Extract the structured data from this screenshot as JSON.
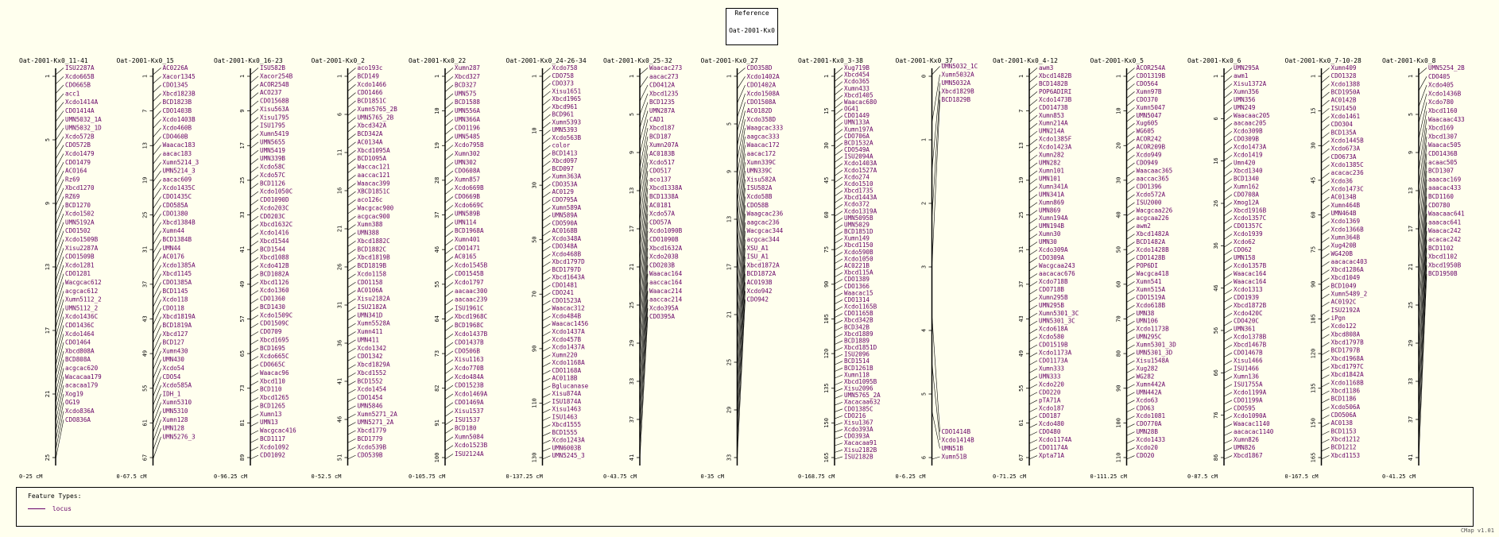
{
  "reference": {
    "heading": "Reference",
    "map": "Oat-2001-Kx0"
  },
  "legend": {
    "title": "Feature Types:",
    "item": "locus",
    "color": "#660066"
  },
  "version": "CMap v1.01",
  "maps": [
    {
      "title": "Oat-2001-Kx0_11-41",
      "range": "0-25 cM",
      "ticks": [
        "1",
        "5",
        "9",
        "13",
        "17",
        "21",
        "25"
      ],
      "labels": [
        "ISU2287A",
        "Xcdo665B",
        "CDO665B",
        "acc1",
        "Xcdo1414A",
        "CDO1414A",
        "UMN5032_1A",
        "UMN5032_1D",
        "Xcdo572B",
        "CDO572B",
        "Xcdo1479",
        "CDO1479",
        "ACO164",
        "Rz69",
        "Xbcd1270",
        "RZ69",
        "BCD1270",
        "Xcdo1502",
        "UMN5192A",
        "CDO1502",
        "Xcdo1509B",
        "Xisu2287A",
        "CDO1509B",
        "Xcdo1281",
        "CDO1281",
        "Wacgcac612",
        "acgcac612",
        "Xumn5112_2",
        "UMN5112_2",
        "Xcdo1436C",
        "CDO1436C",
        "Xcdo1464",
        "CDO1464",
        "Xbcd808A",
        "BCD808A",
        "acgcac620",
        "Wacacaa179",
        "acacaa179",
        "Xog19",
        "OG19",
        "Xcdo836A",
        "CDO836A"
      ]
    },
    {
      "title": "Oat-2001-Kx0_15",
      "range": "0-67.5 cM",
      "ticks": [
        "1",
        "7",
        "13",
        "19",
        "25",
        "31",
        "37",
        "43",
        "49",
        "55",
        "61",
        "67"
      ],
      "labels": [
        "AC0226A",
        "Xacor1345",
        "CDO1345",
        "Xbcd1823B",
        "BCD1823B",
        "CDO1403B",
        "Xcdo1403B",
        "Xcdo460B",
        "CDO460B",
        "Waacac183",
        "aacac183",
        "Xumn5214_3",
        "UMN5214_3",
        "aacac609",
        "Xcdo1435C",
        "CDO1435C",
        "CDO585A",
        "CDO1380",
        "Xbcd1384B",
        "Xumn44",
        "BCD1384B",
        "UMN44",
        "AC0176",
        "Xcdo1385A",
        "Xbcd1145",
        "CDO1385A",
        "BCD1145",
        "Xcdo118",
        "CDO118",
        "Xbcd1819A",
        "BCD1819A",
        "Xbcd127",
        "BCD127",
        "Xumn430",
        "UMN430",
        "Xcdo54",
        "CDO54",
        "Xcdo585A",
        "IDH_1",
        "Xumn5310",
        "UMN5310",
        "Xumn128",
        "UMN128",
        "UMN5276_3"
      ]
    },
    {
      "title": "Oat-2001-Kx0_16-23",
      "range": "0-96.25 cM",
      "ticks": [
        "1",
        "9",
        "17",
        "25",
        "33",
        "41",
        "49",
        "57",
        "65",
        "73",
        "81",
        "89"
      ],
      "labels": [
        "ISU582B",
        "Xacor254B",
        "ACOR254B",
        "ACO237",
        "CDO1568B",
        "Xisu563A",
        "Xisu1795",
        "ISU1795",
        "Xumn5419",
        "UMN5655",
        "UMN5419",
        "UMN339B",
        "Xcdo58C",
        "Xcdo57C",
        "BCD1126",
        "Xcdo1050C",
        "CDO1090D",
        "Xcdo203C",
        "CDO203C",
        "Xbcd1632C",
        "Xcdo1416",
        "Xbcd1544",
        "BCD1544",
        "Xbcd1088",
        "Xcdo412B",
        "BCD1082A",
        "Xbcd1126",
        "Xcdo1360",
        "CDO1360",
        "BCD1430",
        "Xcdo1509C",
        "CDO1509C",
        "CDO709",
        "Xbcd1695",
        "BCD1695",
        "Xcdo665C",
        "CDO665C",
        "Waacac96",
        "Xbcd110",
        "BCD110",
        "Xbcd1265",
        "BCD1265",
        "Xumn13",
        "UMN13",
        "Wacgcac416",
        "BCD1117",
        "Xcdo1092",
        "CDO1092"
      ]
    },
    {
      "title": "Oat-2001-Kx0_2",
      "range": "0-52.5 cM",
      "ticks": [
        "1",
        "6",
        "11",
        "16",
        "21",
        "26",
        "31",
        "36",
        "41",
        "46",
        "51"
      ],
      "labels": [
        "aco193c",
        "BCD149",
        "Xcdo1466",
        "CDO1466",
        "BCD1851C",
        "Xumn5765_2B",
        "UMN5765_2B",
        "Xbcd342A",
        "BCD342A",
        "AC0134A",
        "Xbcd1095A",
        "BCD1095A",
        "Waccac121",
        "aaccac121",
        "Waacac399",
        "XBCD1851C",
        "aco126c",
        "Wacgcac900",
        "acgcac900",
        "Xumn388",
        "UMN388",
        "Xbcd1882C",
        "BCD1882C",
        "Xbcd1819B",
        "BCD1819B",
        "Xcdo1158",
        "CDO1158",
        "AC0106A",
        "Xisu2182A",
        "ISU2182A",
        "UMN341D",
        "Xumn5528A",
        "Xumn411",
        "UMN411",
        "Xcdo1342",
        "CDO1342",
        "Xbcd1829A",
        "Xbcd1552",
        "BCD1552",
        "Xcdo1454",
        "CDO1454",
        "UMN5846",
        "Xumn5271_2A",
        "UMN5271_2A",
        "Xbcd1779",
        "BCD1779",
        "Xcdo539B",
        "CDO539B"
      ]
    },
    {
      "title": "Oat-2001-Kx0_22",
      "range": "0-105.75 cM",
      "ticks": [
        "1",
        "10",
        "19",
        "28",
        "37",
        "46",
        "55",
        "64",
        "73",
        "82",
        "91",
        "100"
      ],
      "labels": [
        "Xumn287",
        "Xbcd327",
        "BCD327",
        "UMN575",
        "BCD1588",
        "UMN556A",
        "UMN366A",
        "CDO1196",
        "UMN5485",
        "Xcdo795B",
        "Xumn302",
        "UMN302",
        "CDO608A",
        "Xumn857",
        "Xcdo669B",
        "CDO669B",
        "Xcdo669C",
        "UMN589B",
        "UMN114",
        "BCD1968A",
        "Xumn401",
        "CDO1471",
        "AC0165",
        "Xcdo1545B",
        "CDO1545B",
        "Xcdo1797",
        "aacaac300",
        "aacaac239",
        "ISU1961C",
        "Xbcd1968C",
        "BCD1968C",
        "Xcdo1437B",
        "CDO1437B",
        "CDO506B",
        "Xisu1163",
        "Xcdo770B",
        "Xcdo484A",
        "CDO1523B",
        "Xcdo1469A",
        "CDO1469A",
        "Xisu1537",
        "ISU1537",
        "BCD180",
        "Xumn5084",
        "Xcdo1523B",
        "ISU2124A"
      ]
    },
    {
      "title": "Oat-2001-Kx0_24-26-34",
      "range": "0-137.25 cM",
      "ticks": [
        "1",
        "10",
        "30",
        "50",
        "70",
        "90",
        "110",
        "130"
      ],
      "labels": [
        "Xcdo758",
        "CDO758",
        "CDO373",
        "Xisu1651",
        "Xbcd1965",
        "Xbcd961",
        "BCD961",
        "Xumn5393",
        "UMN5393",
        "Xcdo563B",
        "color",
        "BCD1413",
        "Xbcd097",
        "BCD097",
        "Xumn363A",
        "CDO353A",
        "AC0129",
        "CDO795A",
        "Xumn589A",
        "UMN589A",
        "CDO590A",
        "AC0168B",
        "Xcdo348A",
        "CDO348A",
        "Xcdo468B",
        "Xbcd1797D",
        "BCD1797D",
        "Xbcd1643A",
        "CDO1481",
        "CDO241",
        "CDO1523A",
        "Waacac312",
        "Xcdo484B",
        "Waacac1456",
        "Xcdo1437A",
        "Xcdo457B",
        "Xcdo1437A",
        "Xumn220",
        "Xcdo1168A",
        "CDO1168A",
        "AC0118B",
        "Bglucanase",
        "Xisu874A",
        "ISU1874A",
        "Xisu1463",
        "ISU1463",
        "Xbcd1555",
        "BCD1555",
        "Xcdo1243A",
        "UMN6003B",
        "UMN5245_3"
      ]
    },
    {
      "title": "Oat-2001-Kx0_25-32",
      "range": "0-43.75 cM",
      "ticks": [
        "1",
        "5",
        "9",
        "13",
        "17",
        "21",
        "25",
        "29",
        "33",
        "37",
        "41"
      ],
      "labels": [
        "Waacac273",
        "aacac273",
        "CDO412A",
        "Xbcd1235",
        "BCD1235",
        "UMN287A",
        "CAD1",
        "Xbcd187",
        "BCD187",
        "Xumn207A",
        "AC0183B",
        "Xcdo517",
        "CDO517",
        "aco137",
        "Xbcd1338A",
        "BCD1338A",
        "AC0181",
        "Xcdo57A",
        "CDO57A",
        "Xcdo1090B",
        "CDO1090B",
        "Xbcd1632A",
        "Xcdo203B",
        "CDO203B",
        "Waacac164",
        "aaccac164",
        "Waacac214",
        "aaccac214",
        "Xcdo395A",
        "CDO395A"
      ]
    },
    {
      "title": "Oat-2001-Kx0_27",
      "range": "0-35 cM",
      "ticks": [
        "1",
        "5",
        "9",
        "13",
        "17",
        "21",
        "25",
        "29",
        "33"
      ],
      "labels": [
        "CDO358D",
        "Xcdo1402A",
        "CDO1402A",
        "Xcdo1508A",
        "CDO1508A",
        "AC0182D",
        "Xcdo358D",
        "Waagcac333",
        "aagcac333",
        "Waacac172",
        "aacac172",
        "Xumn339C",
        "UMN339C",
        "Xisu582A",
        "ISU582A",
        "Xcdo58B",
        "CDO58B",
        "Waagcac236",
        "aagcac236",
        "Wacgcac344",
        "acgcac344",
        "XSU_A1",
        "ISU_A1",
        "Xbcd1872A",
        "BCD1872A",
        "AC0193B",
        "Xcdo942",
        "CDO942"
      ]
    },
    {
      "title": "Oat-2001-Kx0_3-38",
      "range": "0-168.75 cM",
      "ticks": [
        "1",
        "15",
        "30",
        "45",
        "60",
        "75",
        "90",
        "105",
        "120",
        "135",
        "150",
        "165"
      ],
      "labels": [
        "Xug719B",
        "Xbcd454",
        "Xcdo365",
        "Xumn433",
        "Xbcd1405",
        "Waacac680",
        "OG41",
        "CDO1449",
        "UMN133A",
        "Xumn197A",
        "CDO706A",
        "BCD1532A",
        "CDO549A",
        "ISU2094A",
        "Xcdo1403A",
        "Xcdo1527A",
        "Xcdo274",
        "Xcdo1510",
        "Xbcd1735",
        "Xbcd1443A",
        "Xcdo372",
        "Xcdo1319A",
        "UMN5095B",
        "UMN5029",
        "BCD1851D",
        "Xumn149",
        "Xbcd1150",
        "Xcdo590B",
        "Xcdo1050",
        "AC0221B",
        "Xbcd115A",
        "CDO1389",
        "CDO1366",
        "Waacac15",
        "CDO1314",
        "Xcdo1165B",
        "CDO1165B",
        "Xbcd342B",
        "BCD342B",
        "Xbcd1889",
        "BCD1889",
        "Xbcd1851D",
        "ISU2096",
        "BCD1514",
        "BCD1261B",
        "Xumn118",
        "Xbcd1095B",
        "Xisu2096",
        "UMN5765_2A",
        "Xacacaa632",
        "CDO1385C",
        "CDO216",
        "Xisu1367",
        "Xcdo393A",
        "CDO393A",
        "Xacacaa91",
        "Xisu2182B",
        "ISU2182B"
      ]
    },
    {
      "title": "Oat-2001-Kx0_37",
      "range": "0-6.25 cM",
      "ticks": [
        "0",
        "1",
        "2",
        "3",
        "4",
        "5",
        "6"
      ],
      "labels": [
        "UMN5032_1C",
        "Xumn5032A",
        "UMN5032A",
        "Xbcd1829B",
        "BCD1829B",
        "CDO1414B",
        "Xcdo1414B",
        "UMN51B",
        "Xumn51B"
      ]
    },
    {
      "title": "Oat-2001-Kx0_4-12",
      "range": "0-71.25 cM",
      "ticks": [
        "1",
        "7",
        "13",
        "19",
        "25",
        "31",
        "37",
        "43",
        "49",
        "55",
        "61",
        "67"
      ],
      "labels": [
        "awm3",
        "Xbcd1482B",
        "BCD1482B",
        "POP6ADIRI",
        "Xcdo1473B",
        "CDO1473B",
        "Xumn853",
        "Xumn214A",
        "UMN214A",
        "Xcdo1385F",
        "Xcdo1423A",
        "Xumn282",
        "UMN282",
        "Xumn101",
        "UMN101",
        "Xumn341A",
        "UMN341A",
        "Xumn869",
        "UMN869",
        "Xumn194A",
        "UMN194B",
        "Xumn30",
        "UMN30",
        "Xcdo309A",
        "CDO309A",
        "Wacgcaa243",
        "aacacac676",
        "Xcdo718B",
        "CDO718B",
        "Xumn295B",
        "UMN295B",
        "Xumn5301_3C",
        "UMN5301_3C",
        "Xcdo618A",
        "Xcdo580",
        "CDO1519B",
        "Xcdo1173A",
        "CDO1173A",
        "Xumn333",
        "UMN333",
        "Xcdo220",
        "CDO220",
        "pTA71A",
        "Xcdo187",
        "CDO187",
        "Xcdo480",
        "CDO480",
        "Xcdo1174A",
        "CDO1174A",
        "Xpta71A"
      ]
    },
    {
      "title": "Oat-2001-Kx0_5",
      "range": "0-111.25 cM",
      "ticks": [
        "1",
        "10",
        "20",
        "30",
        "40",
        "50",
        "60",
        "70",
        "80",
        "90",
        "100",
        "110"
      ],
      "labels": [
        "ACOR254A",
        "CDO1319B",
        "CDO564",
        "Xumn97B",
        "CDO370",
        "Xumn5047",
        "UMN5047",
        "Xug605",
        "WG605",
        "ACOR242",
        "ACOR209B",
        "Xcdo949",
        "CDO949",
        "Waacaac365",
        "aaccac365",
        "CDO1396",
        "Xcdo572A",
        "ISU2000",
        "Wacgcaa226",
        "acgcaa226",
        "awm2",
        "Xbcd1482A",
        "BCD1482A",
        "Xcdo1428B",
        "CDO1428B",
        "POP6DI",
        "Wacgca418",
        "Xumn541",
        "Xumn515A",
        "CDO1519A",
        "Xcdo618B",
        "UMN38",
        "UMN106",
        "Xcdo1173B",
        "UMN295C",
        "Xumn5301_3D",
        "UMN5301_3D",
        "Xisu1548A",
        "Xug282",
        "WG282",
        "Xumn442A",
        "UMN442A",
        "Xcdo63",
        "CDO63",
        "Xcdo1081",
        "CDO770A",
        "UMN28B",
        "Xcdo1433",
        "Xcdo20",
        "CDO20"
      ]
    },
    {
      "title": "Oat-2001-Kx0_6",
      "range": "0-87.5 cM",
      "ticks": [
        "1",
        "6",
        "16",
        "26",
        "36",
        "46",
        "56",
        "66",
        "76",
        "86"
      ],
      "labels": [
        "UMN295A",
        "awm1",
        "Xisu1372A",
        "Xumn356",
        "UMN356",
        "UMN249",
        "Waacaac205",
        "aacaac205",
        "Xcdo309B",
        "CDO309B",
        "Xcdo1473A",
        "Xcdo1419",
        "Umn420",
        "Xbcd1340",
        "BCD1340",
        "Xumn162",
        "CDO708A",
        "Xmog12A",
        "Xbcd1916B",
        "Xcdo1357C",
        "CDO1357C",
        "Xcdo1939",
        "Xcdo62",
        "CDO62",
        "UMN158",
        "Xcdo1357B",
        "Waacac164",
        "Waacac164",
        "Xcdo1313",
        "CDO1939",
        "Xbcd1872B",
        "Xcdo420C",
        "CDO420C",
        "UMN361",
        "Xcdo1378B",
        "Xbcd1467B",
        "CDO1467B",
        "Xisu1466",
        "ISU1466",
        "Xumn136",
        "ISU1755A",
        "Xcdo1199A",
        "CDO1199A",
        "CDO595",
        "Xcdo1090A",
        "Waacac1140",
        "aacacac1140",
        "Xumn826",
        "UMN826",
        "Xbcd1867"
      ]
    },
    {
      "title": "Oat-2001-Kx0_7-10-28",
      "range": "0-167.5 cM",
      "ticks": [
        "1",
        "15",
        "30",
        "45",
        "60",
        "75",
        "90",
        "105",
        "120",
        "135",
        "150",
        "165"
      ],
      "labels": [
        "Xumn409",
        "CDO1328",
        "Xcdo1388",
        "BCD1950A",
        "AC0142B",
        "ISU1450",
        "Xcdo1461",
        "CDO304",
        "BCD135A",
        "Xcdo1445B",
        "Xcdo673A",
        "CDO673A",
        "Xcdo1385C",
        "acacac236",
        "Xcdo36",
        "Xcdo1473C",
        "AC0134B",
        "Xumn464B",
        "UMN464B",
        "Xcdo1369",
        "Xcdo1366B",
        "Xumn364B",
        "Xug420B",
        "WG420B",
        "aacacac403",
        "Xbcd1286A",
        "Xbcd1049",
        "BCD1049",
        "Xumn5489_2",
        "AC0192C",
        "ISU2192A",
        "iPgn",
        "Xcdo122",
        "Xbcd808A",
        "Xbcd1797B",
        "BCD1797B",
        "Xbcd1968A",
        "Xbcd1797C",
        "Xbcd1842A",
        "Xcdo1168B",
        "Xbcd1186",
        "BCD1186",
        "Xcdo506A",
        "CDO506A",
        "AC0138",
        "BCD1153",
        "Xbcd1212",
        "BCD1212",
        "Xbcd1153"
      ]
    },
    {
      "title": "Oat-2001-Kx0_8",
      "range": "0-41.25 cM",
      "ticks": [
        "1",
        "5",
        "9",
        "13",
        "17",
        "21",
        "25",
        "29",
        "33",
        "37",
        "41"
      ],
      "labels": [
        "UMN5254_2B",
        "CDO405",
        "Xcdo405",
        "Xcdo1436B",
        "Xcdo780",
        "Xbcd1160",
        "Waacaac433",
        "Xbcd169",
        "Xbcd1307",
        "Waacac505",
        "CDO1436B",
        "acaac505",
        "BCD1307",
        "aaacac169",
        "aaacac433",
        "BCD1160",
        "CDO780",
        "Waacaac641",
        "aaacac641",
        "Waacac242",
        "acacac242",
        "BCD1102",
        "Xbcd1102",
        "Xbcd1950B",
        "BCD1950B"
      ]
    }
  ]
}
